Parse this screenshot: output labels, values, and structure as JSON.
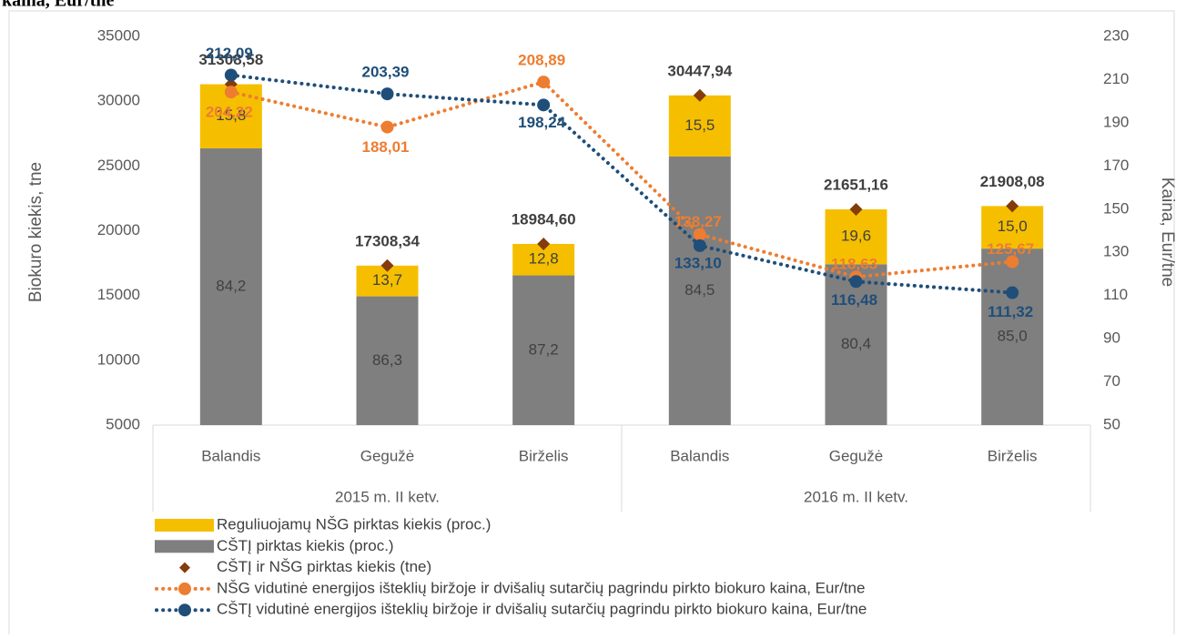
{
  "chart_data": {
    "type": "bar",
    "heading": "kaina, Eur/tne",
    "categories": [
      "Balandis",
      "Gegužė",
      "Birželis",
      "Balandis",
      "Gegužė",
      "Birželis"
    ],
    "groups": [
      "2015 m. II ketv.",
      "2016 m. II ketv."
    ],
    "ylabel": "Biokuro kiekis, tne",
    "y2label": "Kaina, Eur/tne",
    "ylim": [
      5000,
      35000
    ],
    "yticks": [
      5000,
      10000,
      15000,
      20000,
      25000,
      30000,
      35000
    ],
    "y2lim": [
      50,
      230
    ],
    "y2ticks": [
      50,
      70,
      90,
      110,
      130,
      150,
      170,
      190,
      210,
      230
    ],
    "series": [
      {
        "name": "Reguliuojamų NŠG pirktas kiekis (proc.)",
        "kind": "share",
        "color": "#f5bf00",
        "values": [
          15.8,
          13.7,
          12.8,
          15.5,
          19.6,
          15.0
        ],
        "value_labels": [
          "15,8",
          "13,7",
          "12,8",
          "15,5",
          "19,6",
          "15,0"
        ]
      },
      {
        "name": "CŠTĮ pirktas kiekis (proc.)",
        "kind": "share",
        "color": "#7f7f7f",
        "values": [
          84.2,
          86.3,
          87.2,
          84.5,
          80.4,
          85.0
        ],
        "value_labels": [
          "84,2",
          "86,3",
          "87,2",
          "84,5",
          "80,4",
          "85,0"
        ]
      },
      {
        "name": "CŠTĮ ir NŠG pirktas kiekis (tne)",
        "kind": "total",
        "color": "#843c0c",
        "values": [
          31308.58,
          17308.34,
          18984.6,
          30447.94,
          21651.16,
          21908.08
        ],
        "value_labels": [
          "31308,58",
          "17308,34",
          "18984,60",
          "30447,94",
          "21651,16",
          "21908,08"
        ]
      },
      {
        "name": "NŠG  vidutinė energijos išteklių biržoje ir dvišalių sutarčių pagrindu pirkto biokuro kaina, Eur/tne",
        "kind": "line",
        "axis": "y2",
        "color": "#ed7d31",
        "values": [
          204.22,
          188.01,
          208.89,
          138.27,
          118.63,
          125.67
        ],
        "value_labels": [
          "204,22",
          "188,01",
          "208,89",
          "138,27",
          "118,63",
          "125,67"
        ]
      },
      {
        "name": "CŠTĮ  vidutinė energijos išteklių biržoje ir dvišalių sutarčių pagrindu pirkto biokuro kaina, Eur/tne",
        "kind": "line",
        "axis": "y2",
        "color": "#1f4e79",
        "values": [
          212.09,
          203.39,
          198.24,
          133.1,
          116.48,
          111.32
        ],
        "value_labels": [
          "212,09",
          "203,39",
          "198,24",
          "133,10",
          "116,48",
          "111,32"
        ]
      }
    ]
  }
}
